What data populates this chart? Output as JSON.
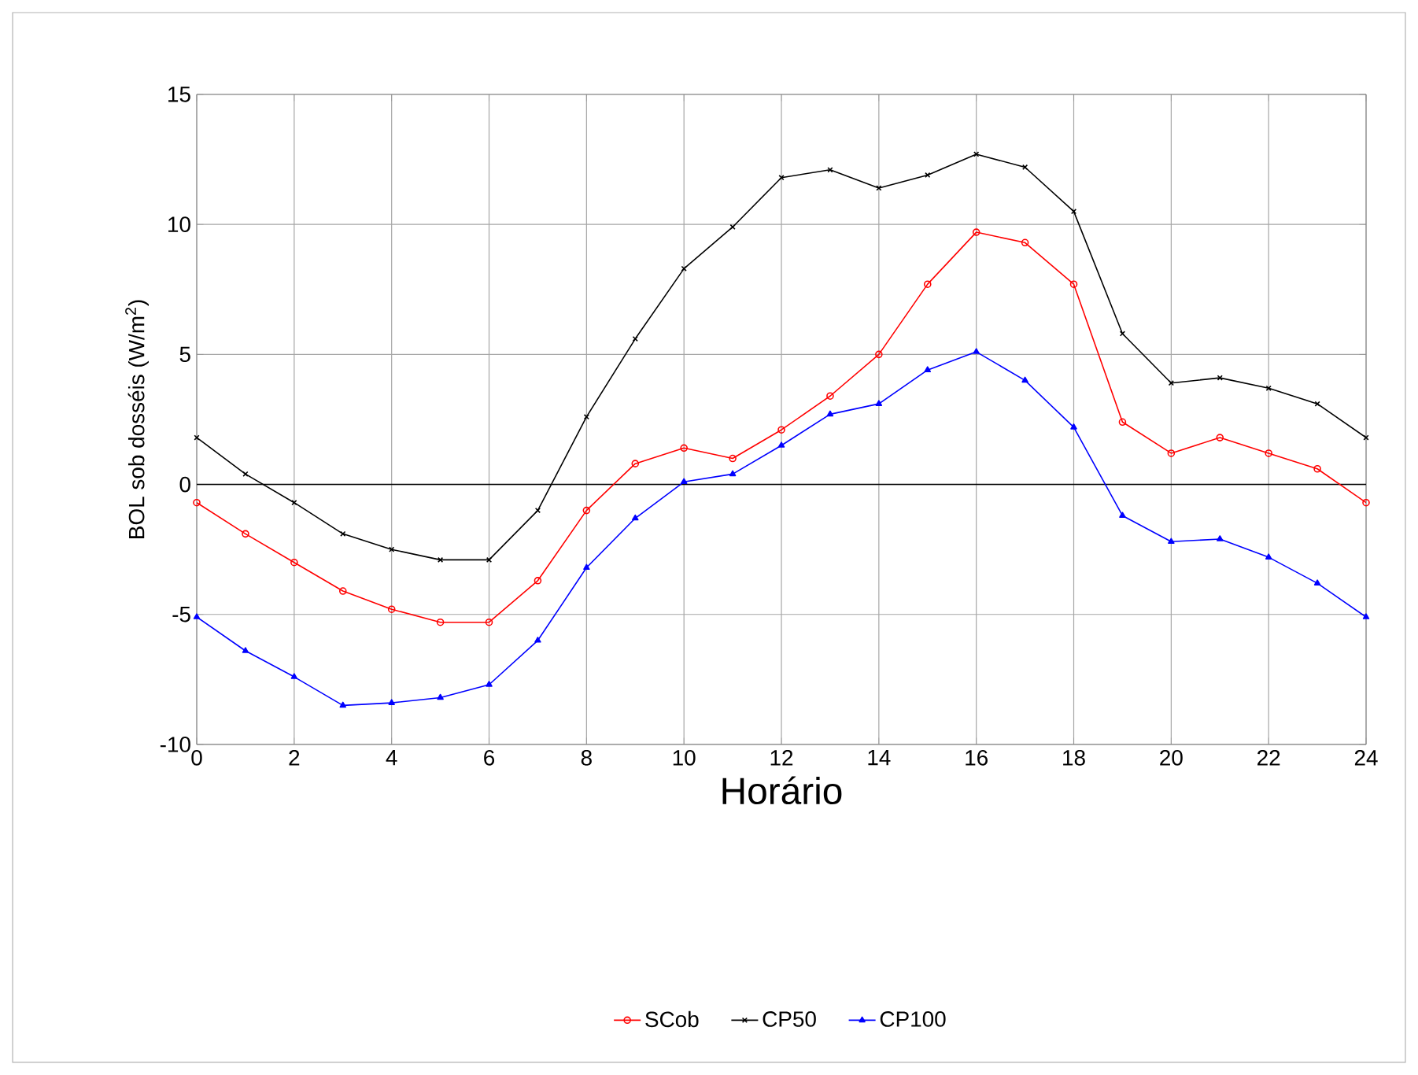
{
  "chart_data": {
    "type": "line",
    "xlabel": "Horário",
    "ylabel": "BOL sob dosséis (W/m$^{2}$)",
    "x": [
      0,
      1,
      2,
      3,
      4,
      5,
      6,
      7,
      8,
      9,
      10,
      11,
      12,
      13,
      14,
      15,
      16,
      17,
      18,
      19,
      20,
      21,
      22,
      23,
      24
    ],
    "series": [
      {
        "name": "SCob",
        "color": "#ff0000",
        "marker": "circle",
        "values": [
          -0.7,
          -1.9,
          -3.0,
          -4.1,
          -4.8,
          -5.3,
          -5.3,
          -3.7,
          -1.0,
          0.8,
          1.4,
          1.0,
          2.1,
          3.4,
          5.0,
          7.7,
          9.7,
          9.3,
          7.7,
          2.4,
          1.2,
          1.8,
          1.2,
          0.6,
          -0.7
        ]
      },
      {
        "name": "CP50",
        "color": "#000000",
        "marker": "cross",
        "values": [
          1.8,
          0.4,
          -0.7,
          -1.9,
          -2.5,
          -2.9,
          -2.9,
          -1.0,
          2.6,
          5.6,
          8.3,
          9.9,
          11.8,
          12.1,
          11.4,
          11.9,
          12.7,
          12.2,
          10.5,
          5.8,
          3.9,
          4.1,
          3.7,
          3.1,
          1.8
        ]
      },
      {
        "name": "CP100",
        "color": "#0000ff",
        "marker": "triangle",
        "values": [
          -5.1,
          -6.4,
          -7.4,
          -8.5,
          -8.4,
          -8.2,
          -7.7,
          -6.0,
          -3.2,
          -1.3,
          0.1,
          0.4,
          1.5,
          2.7,
          3.1,
          4.4,
          5.1,
          4.0,
          2.2,
          -1.2,
          -2.2,
          -2.1,
          -2.8,
          -3.8,
          -5.1
        ]
      }
    ],
    "xlim": [
      0,
      24
    ],
    "xticks": [
      0,
      2,
      4,
      6,
      8,
      10,
      12,
      14,
      16,
      18,
      20,
      22,
      24
    ],
    "ylim": [
      -10,
      15
    ],
    "yticks": [
      -10,
      -5,
      0,
      5,
      10,
      15
    ],
    "ref_lines": [
      {
        "axis": "y",
        "value": 0,
        "color": "#000000"
      }
    ],
    "grid": true,
    "legend": "bottom",
    "line_style": "solid"
  }
}
